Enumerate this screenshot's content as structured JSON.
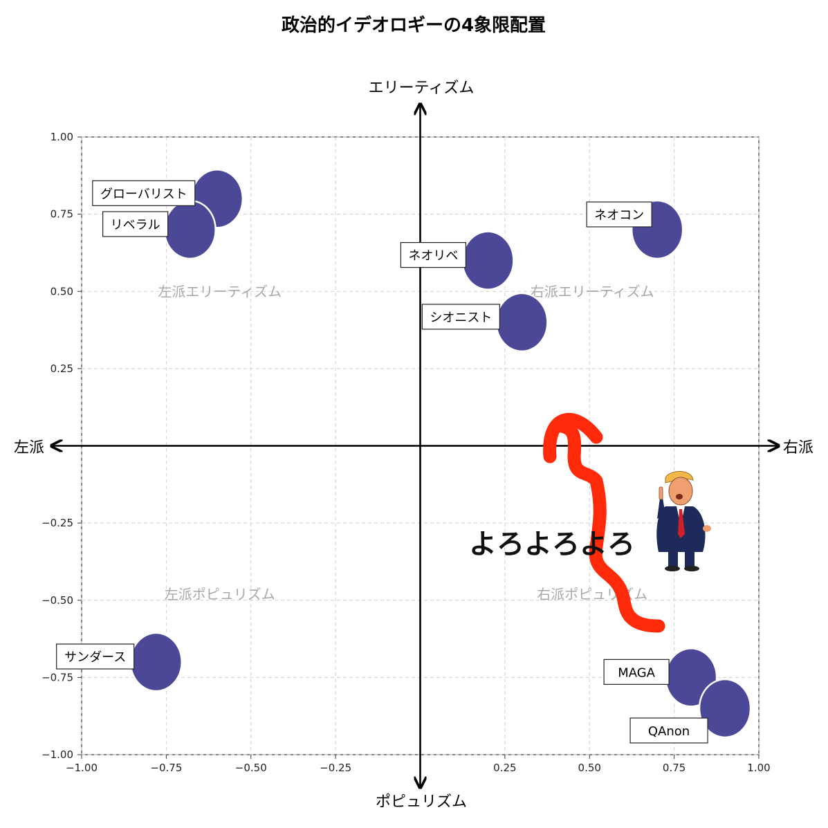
{
  "chart_data": {
    "type": "scatter",
    "title": "政治的イデオロギーの4象限配置",
    "axes": {
      "top": "エリーティズム",
      "bottom": "ポピュリズム",
      "left": "左派",
      "right": "右派"
    },
    "xlim": [
      -1.0,
      1.0
    ],
    "ylim": [
      -1.0,
      1.0
    ],
    "x_ticks": [
      {
        "value": -1.0,
        "label": "−1.00"
      },
      {
        "value": -0.75,
        "label": "−0.75"
      },
      {
        "value": -0.5,
        "label": "−0.50"
      },
      {
        "value": -0.25,
        "label": "−0.25"
      },
      {
        "value": 0.25,
        "label": "0.25"
      },
      {
        "value": 0.5,
        "label": "0.50"
      },
      {
        "value": 0.75,
        "label": "0.75"
      },
      {
        "value": 1.0,
        "label": "1.00"
      }
    ],
    "y_ticks": [
      {
        "value": 1.0,
        "label": "1.00"
      },
      {
        "value": 0.75,
        "label": "0.75"
      },
      {
        "value": 0.5,
        "label": "0.50"
      },
      {
        "value": 0.25,
        "label": "0.25"
      },
      {
        "value": -0.25,
        "label": "−0.25"
      },
      {
        "value": -0.5,
        "label": "−0.50"
      },
      {
        "value": -0.75,
        "label": "−0.75"
      },
      {
        "value": -1.0,
        "label": "−1.00"
      }
    ],
    "grid": true,
    "quadrant_labels": [
      {
        "text": "左派エリーティズム",
        "x": -0.5,
        "y": 0.5
      },
      {
        "text": "右派エリーティズム",
        "x": 0.6,
        "y": 0.5
      },
      {
        "text": "左派ポピュリズム",
        "x": -0.5,
        "y": -0.48
      },
      {
        "text": "右派ポピュリズム",
        "x": 0.6,
        "y": -0.48
      }
    ],
    "point_color": "#4b4897",
    "points": [
      {
        "label": "グローバリスト",
        "x": -0.6,
        "y": 0.8,
        "label_side": "left"
      },
      {
        "label": "リベラル",
        "x": -0.68,
        "y": 0.7,
        "label_side": "left"
      },
      {
        "label": "ネオリベ",
        "x": 0.2,
        "y": 0.6,
        "label_side": "left"
      },
      {
        "label": "ネオコン",
        "x": 0.7,
        "y": 0.7,
        "label_side": "left-up"
      },
      {
        "label": "シオニスト",
        "x": 0.3,
        "y": 0.4,
        "label_side": "left"
      },
      {
        "label": "サンダース",
        "x": -0.78,
        "y": -0.7,
        "label_side": "left"
      },
      {
        "label": "MAGA",
        "x": 0.8,
        "y": -0.75,
        "label_side": "left"
      },
      {
        "label": "QAnon",
        "x": 0.9,
        "y": -0.85,
        "label_side": "left-down"
      }
    ],
    "annotation": {
      "text": "よろよろよろ",
      "arrow_color": "#ff2a0a",
      "figure": "trump-caricature"
    }
  }
}
